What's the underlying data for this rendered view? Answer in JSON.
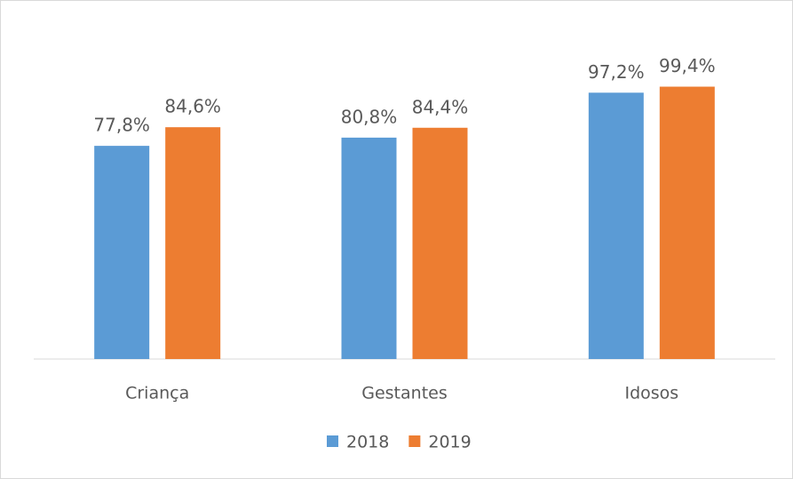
{
  "chart_data": {
    "type": "bar",
    "categories": [
      "Criança",
      "Gestantes",
      "Idosos"
    ],
    "series": [
      {
        "name": "2018",
        "color": "#5b9bd5",
        "values": [
          77.8,
          80.8,
          97.2
        ],
        "value_labels": [
          "77,8%",
          "80,8%",
          "97,2%"
        ]
      },
      {
        "name": "2019",
        "color": "#ed7d31",
        "values": [
          84.6,
          84.4,
          99.4
        ],
        "value_labels": [
          "84,6%",
          "84,4%",
          "99,4%"
        ]
      }
    ],
    "ylim": [
      0,
      120
    ],
    "legend": "bottom"
  }
}
